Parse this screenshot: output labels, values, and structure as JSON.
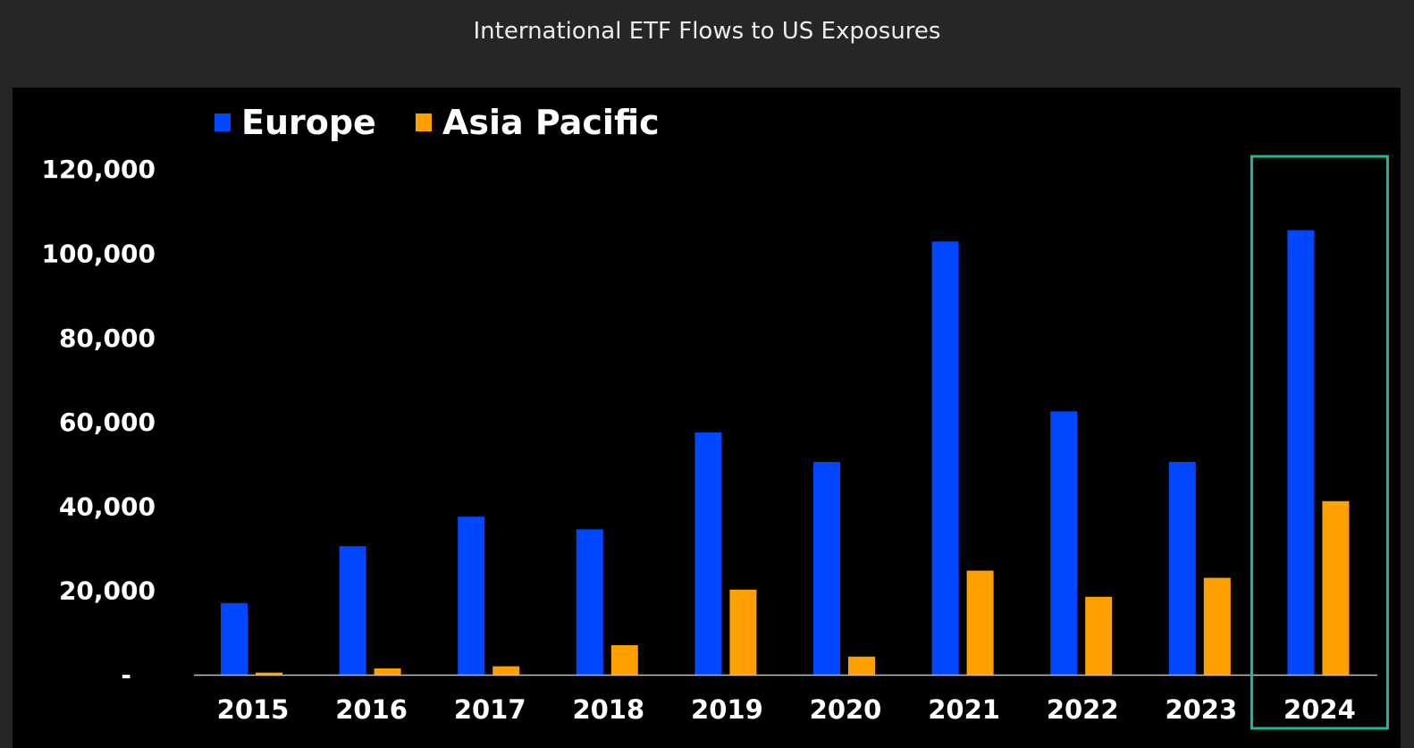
{
  "header": {
    "title": "International ETF Flows to US Exposures"
  },
  "colors": {
    "europe": "#0047FF",
    "asia_pacific": "#FFA000",
    "highlight": "#1DB99A",
    "axis": "#BFBFBF"
  },
  "chart_data": {
    "type": "bar",
    "title": "International ETF Flows to US Exposures",
    "xlabel": "",
    "ylabel": "",
    "ylim": [
      0,
      120000
    ],
    "yticks": [
      0,
      20000,
      40000,
      60000,
      80000,
      100000,
      120000
    ],
    "ytick_labels": [
      "-",
      "20,000",
      "40,000",
      "60,000",
      "80,000",
      "100,000",
      "120,000"
    ],
    "grid": false,
    "legend_position": "top-left",
    "categories": [
      "2015",
      "2016",
      "2017",
      "2018",
      "2019",
      "2020",
      "2021",
      "2022",
      "2023",
      "2024"
    ],
    "series": [
      {
        "name": "Europe",
        "color": "#0047FF",
        "values": [
          17000,
          30500,
          37500,
          34500,
          57500,
          50500,
          102800,
          62500,
          50500,
          105500
        ]
      },
      {
        "name": "Asia Pacific",
        "color": "#FFA000",
        "values": [
          500,
          1500,
          2000,
          7000,
          20200,
          4300,
          24700,
          18500,
          23000,
          41200
        ]
      }
    ],
    "highlighted_category": "2024"
  }
}
